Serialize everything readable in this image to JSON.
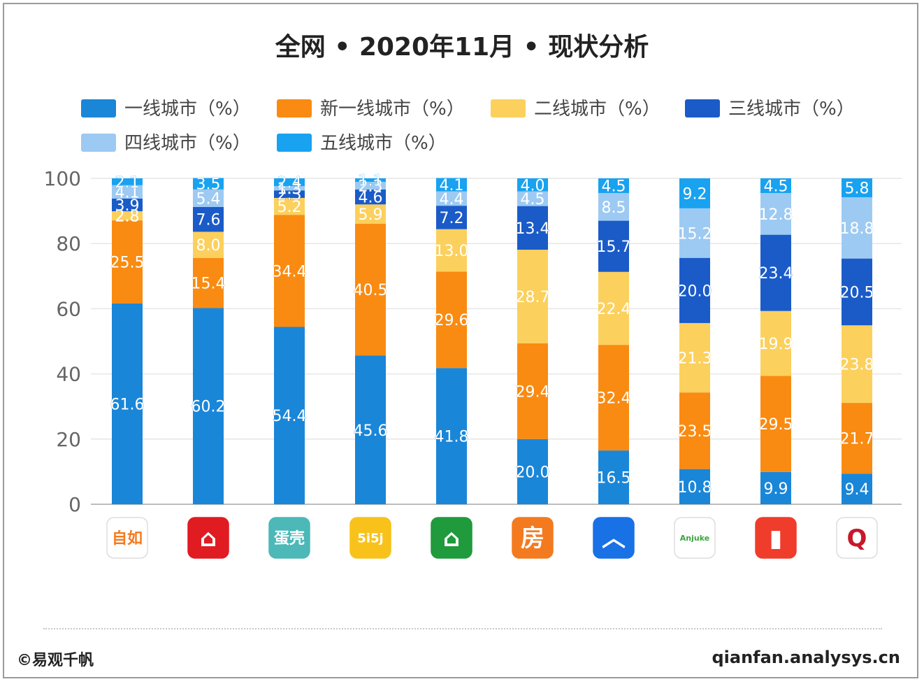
{
  "title": "全网 • 2020年11月 • 现状分析",
  "footer": {
    "source": "©易观千帆",
    "site": "qianfan.analysys.cn"
  },
  "colors": {
    "series": [
      "#1a86d8",
      "#f98b12",
      "#fcd05d",
      "#1a5bc8",
      "#9dcaf2",
      "#18a2f0"
    ],
    "grid": "#e6e6e6",
    "axis_text": "#666666"
  },
  "apps": [
    {
      "icon": "ziroom-app-icon",
      "label": "自如",
      "bg": "#ffffff",
      "fg": "#f47a1f"
    },
    {
      "icon": "home-red-app-icon",
      "label": "⌂",
      "bg": "#e11b22",
      "fg": "#ffffff"
    },
    {
      "icon": "teal-egg-app-icon",
      "label": "蛋壳",
      "bg": "#4cb8b8",
      "fg": "#ffffff"
    },
    {
      "icon": "5i5j-app-icon",
      "label": "5i5j",
      "bg": "#f8c21a",
      "fg": "#ffffff"
    },
    {
      "icon": "green-house-app-icon",
      "label": "⌂",
      "bg": "#1f9a3c",
      "fg": "#ffffff"
    },
    {
      "icon": "fang-app-icon",
      "label": "房",
      "bg": "#f47a1f",
      "fg": "#ffffff"
    },
    {
      "icon": "blue-roof-app-icon",
      "label": "︿",
      "bg": "#1971e6",
      "fg": "#ffffff"
    },
    {
      "icon": "anjuke-app-icon",
      "label": "Anjuke",
      "bg": "#ffffff",
      "fg": "#3aa640"
    },
    {
      "icon": "red-book-app-icon",
      "label": "▮",
      "bg": "#f03c2b",
      "fg": "#ffffff"
    },
    {
      "icon": "q-logo-app-icon",
      "label": "Q",
      "bg": "#ffffff",
      "fg": "#c8182a"
    }
  ],
  "chart_data": {
    "type": "bar",
    "stacked": true,
    "title": "全网 • 2020年11月 • 现状分析",
    "xlabel": "",
    "ylabel": "",
    "ylim": [
      0,
      100
    ],
    "yticks": [
      0,
      20,
      40,
      60,
      80,
      100
    ],
    "grid": true,
    "legend_position": "top",
    "categories": [
      "",
      "",
      "",
      "",
      "",
      "",
      "",
      "",
      "",
      ""
    ],
    "series": [
      {
        "name": "一线城市（%）",
        "values": [
          61.6,
          60.2,
          54.4,
          45.6,
          41.8,
          20.0,
          16.5,
          10.8,
          9.9,
          9.4
        ]
      },
      {
        "name": "新一线城市（%）",
        "values": [
          25.5,
          15.4,
          34.4,
          40.5,
          29.6,
          29.4,
          32.4,
          23.5,
          29.5,
          21.7
        ]
      },
      {
        "name": "二线城市（%）",
        "values": [
          2.8,
          8.0,
          5.2,
          5.9,
          13.0,
          28.7,
          22.4,
          21.3,
          19.9,
          23.8
        ]
      },
      {
        "name": "三线城市（%）",
        "values": [
          3.9,
          7.6,
          2.3,
          4.6,
          7.2,
          13.4,
          15.7,
          20.0,
          23.4,
          20.5
        ]
      },
      {
        "name": "四线城市（%）",
        "values": [
          4.1,
          5.4,
          1.3,
          2.3,
          4.4,
          4.5,
          8.5,
          15.2,
          12.8,
          18.8
        ]
      },
      {
        "name": "五线城市（%）",
        "values": [
          2.1,
          3.5,
          2.4,
          1.1,
          4.1,
          4.0,
          4.5,
          9.2,
          4.5,
          5.8
        ]
      }
    ]
  }
}
